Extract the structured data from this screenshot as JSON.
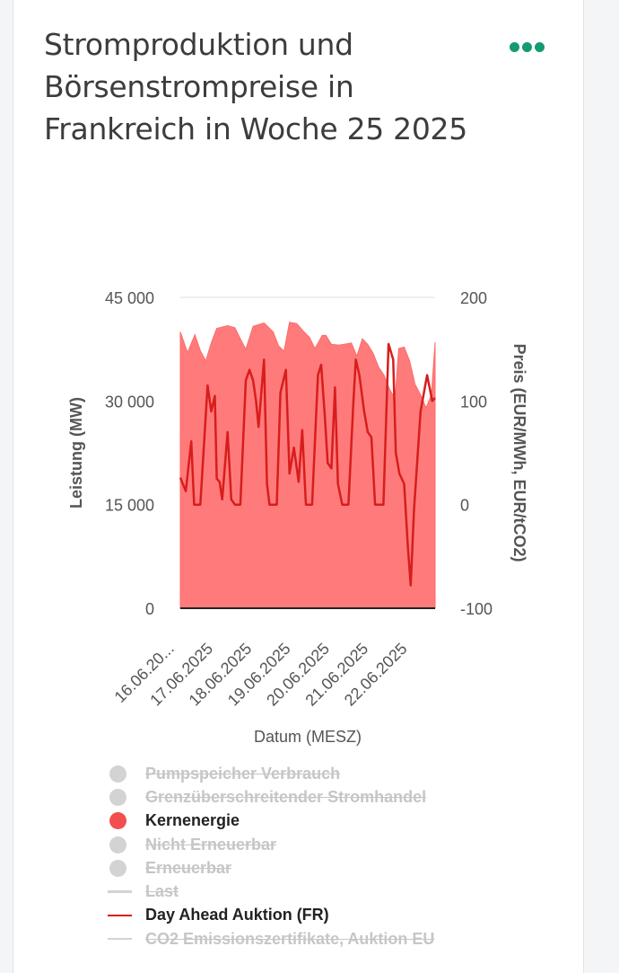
{
  "title": "Stromproduktion und Börsenstrompreise in Frankreich in Woche 25 2025",
  "menu_icon": "more-horizontal-icon",
  "colors": {
    "accent": "#169a72",
    "nuclear_fill": "#ff7b7b",
    "price_line": "#d81d1d",
    "inactive": "#d3d3d3"
  },
  "chart_data": {
    "type": "area",
    "xlabel": "Datum (MESZ)",
    "ylabel_left": "Leistung (MW)",
    "ylabel_right": "Preis (EUR/MWh, EUR/tCO2)",
    "x_tick_labels": [
      "16.06.20...",
      "17.06.2025",
      "18.06.2025",
      "19.06.2025",
      "20.06.2025",
      "21.06.2025",
      "22.06.2025"
    ],
    "y_left_ticks": [
      "45 000",
      "30 000",
      "15 000",
      "0"
    ],
    "y_right_ticks": [
      "200",
      "100",
      "0",
      "-100"
    ],
    "y_left_range": [
      0,
      45000
    ],
    "y_right_range": [
      -100,
      200
    ],
    "x_range_days": [
      0,
      7
    ],
    "grid": true,
    "series": [
      {
        "name": "Kernenergie",
        "kind": "area",
        "axis": "left",
        "points": [
          [
            0,
            40000
          ],
          [
            0.2,
            37000
          ],
          [
            0.4,
            39600
          ],
          [
            0.55,
            37300
          ],
          [
            0.7,
            35800
          ],
          [
            0.85,
            38400
          ],
          [
            1.0,
            40500
          ],
          [
            1.3,
            40900
          ],
          [
            1.5,
            40600
          ],
          [
            1.65,
            39000
          ],
          [
            1.8,
            37500
          ],
          [
            2.0,
            40800
          ],
          [
            2.3,
            41300
          ],
          [
            2.55,
            40000
          ],
          [
            2.7,
            38000
          ],
          [
            2.85,
            37200
          ],
          [
            3.0,
            41400
          ],
          [
            3.2,
            41200
          ],
          [
            3.4,
            40000
          ],
          [
            3.55,
            39200
          ],
          [
            3.7,
            37600
          ],
          [
            3.9,
            39500
          ],
          [
            4.0,
            39500
          ],
          [
            4.15,
            38200
          ],
          [
            4.35,
            38100
          ],
          [
            4.5,
            38200
          ],
          [
            4.7,
            38400
          ],
          [
            4.85,
            36500
          ],
          [
            5.0,
            39000
          ],
          [
            5.15,
            38200
          ],
          [
            5.3,
            36900
          ],
          [
            5.45,
            34900
          ],
          [
            5.6,
            33700
          ],
          [
            5.75,
            31700
          ],
          [
            5.9,
            30300
          ],
          [
            6.0,
            37600
          ],
          [
            6.15,
            37800
          ],
          [
            6.3,
            35800
          ],
          [
            6.45,
            32400
          ],
          [
            6.6,
            30900
          ],
          [
            6.75,
            29000
          ],
          [
            6.9,
            30900
          ],
          [
            7.0,
            38500
          ]
        ]
      },
      {
        "name": "Day Ahead Auktion (FR)",
        "kind": "line",
        "axis": "right",
        "points": [
          [
            0,
            26
          ],
          [
            0.15,
            13
          ],
          [
            0.3,
            61
          ],
          [
            0.38,
            0
          ],
          [
            0.55,
            0
          ],
          [
            0.75,
            115
          ],
          [
            0.85,
            90
          ],
          [
            0.95,
            105
          ],
          [
            1.0,
            25
          ],
          [
            1.08,
            22
          ],
          [
            1.15,
            5
          ],
          [
            1.3,
            70
          ],
          [
            1.4,
            5
          ],
          [
            1.5,
            0
          ],
          [
            1.65,
            0
          ],
          [
            1.8,
            120
          ],
          [
            1.9,
            130
          ],
          [
            2.0,
            120
          ],
          [
            2.08,
            100
          ],
          [
            2.15,
            75
          ],
          [
            2.3,
            140
          ],
          [
            2.38,
            20
          ],
          [
            2.45,
            0
          ],
          [
            2.65,
            0
          ],
          [
            2.75,
            108
          ],
          [
            2.9,
            130
          ],
          [
            3.0,
            30
          ],
          [
            3.12,
            55
          ],
          [
            3.25,
            22
          ],
          [
            3.35,
            72
          ],
          [
            3.45,
            0
          ],
          [
            3.62,
            0
          ],
          [
            3.78,
            125
          ],
          [
            3.87,
            135
          ],
          [
            3.97,
            85
          ],
          [
            4.05,
            40
          ],
          [
            4.15,
            35
          ],
          [
            4.25,
            113
          ],
          [
            4.33,
            20
          ],
          [
            4.45,
            0
          ],
          [
            4.62,
            0
          ],
          [
            4.75,
            95
          ],
          [
            4.82,
            140
          ],
          [
            4.92,
            125
          ],
          [
            5.05,
            90
          ],
          [
            5.15,
            70
          ],
          [
            5.25,
            65
          ],
          [
            5.35,
            0
          ],
          [
            5.58,
            0
          ],
          [
            5.72,
            155
          ],
          [
            5.85,
            140
          ],
          [
            5.92,
            50
          ],
          [
            6.02,
            30
          ],
          [
            6.15,
            20
          ],
          [
            6.25,
            -40
          ],
          [
            6.33,
            -78
          ],
          [
            6.42,
            -5
          ],
          [
            6.6,
            90
          ],
          [
            6.78,
            125
          ],
          [
            6.92,
            100
          ],
          [
            7.0,
            103
          ]
        ]
      }
    ],
    "legend": [
      {
        "label": "Pumpspeicher Verbrauch",
        "marker": "dot",
        "active": false,
        "color": "#d3d3d3"
      },
      {
        "label": "Grenzüberschreitender Stromhandel",
        "marker": "dot",
        "active": false,
        "color": "#d3d3d3"
      },
      {
        "label": "Kernenergie",
        "marker": "dot",
        "active": true,
        "color": "#f24e4e"
      },
      {
        "label": "Nicht Erneuerbar",
        "marker": "dot",
        "active": false,
        "color": "#d3d3d3"
      },
      {
        "label": "Erneuerbar",
        "marker": "dot",
        "active": false,
        "color": "#d3d3d3"
      },
      {
        "label": "Last",
        "marker": "line",
        "active": false,
        "color": "#d3d3d3"
      },
      {
        "label": "Day Ahead Auktion (FR)",
        "marker": "line",
        "active": true,
        "color": "#d81d1d"
      },
      {
        "label": "CO2 Emissionszertifikate, Auktion EU",
        "marker": "line",
        "active": false,
        "color": "#d3d3d3"
      }
    ]
  }
}
